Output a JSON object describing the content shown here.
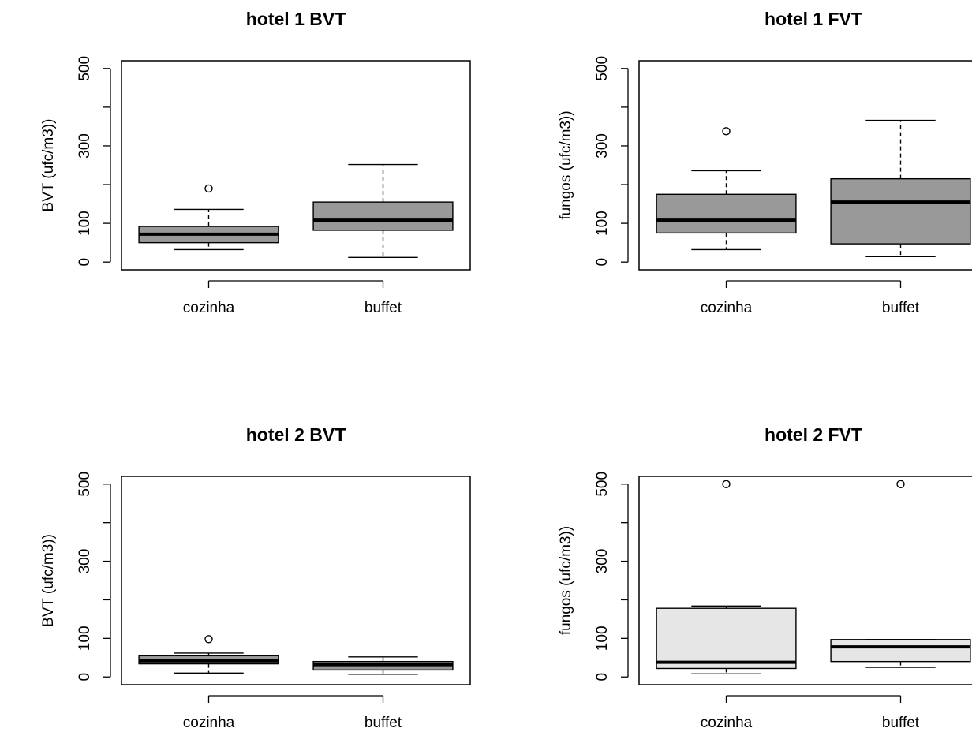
{
  "chart_data": [
    {
      "type": "box",
      "title": "hotel 1 BVT",
      "xlabel": "",
      "ylabel": "BVT (ufc/m3))",
      "ylim": [
        -20,
        520
      ],
      "yticks": [
        0,
        100,
        300,
        500
      ],
      "categories": [
        "cozinha",
        "buffet"
      ],
      "fill": "#999999",
      "boxes": [
        {
          "category": "cozinha",
          "whisker_low": 32,
          "q1": 50,
          "median": 72,
          "q3": 92,
          "whisker_high": 136,
          "outliers": [
            190
          ]
        },
        {
          "category": "buffet",
          "whisker_low": 12,
          "q1": 82,
          "median": 108,
          "q3": 155,
          "whisker_high": 252,
          "outliers": []
        }
      ]
    },
    {
      "type": "box",
      "title": "hotel 1 FVT",
      "xlabel": "",
      "ylabel": "fungos (ufc/m3))",
      "ylim": [
        -20,
        520
      ],
      "yticks": [
        0,
        100,
        300,
        500
      ],
      "categories": [
        "cozinha",
        "buffet"
      ],
      "fill": "#999999",
      "boxes": [
        {
          "category": "cozinha",
          "whisker_low": 32,
          "q1": 75,
          "median": 108,
          "q3": 175,
          "whisker_high": 236,
          "outliers": [
            338
          ]
        },
        {
          "category": "buffet",
          "whisker_low": 14,
          "q1": 47,
          "median": 155,
          "q3": 215,
          "whisker_high": 366,
          "outliers": []
        }
      ]
    },
    {
      "type": "box",
      "title": "hotel 2 BVT",
      "xlabel": "",
      "ylabel": "BVT (ufc/m3))",
      "ylim": [
        -20,
        520
      ],
      "yticks": [
        0,
        100,
        300,
        500
      ],
      "categories": [
        "cozinha",
        "buffet"
      ],
      "fill": "#999999",
      "boxes": [
        {
          "category": "cozinha",
          "whisker_low": 10,
          "q1": 34,
          "median": 42,
          "q3": 55,
          "whisker_high": 62,
          "outliers": [
            98
          ]
        },
        {
          "category": "buffet",
          "whisker_low": 7,
          "q1": 18,
          "median": 32,
          "q3": 40,
          "whisker_high": 52,
          "outliers": []
        }
      ]
    },
    {
      "type": "box",
      "title": "hotel 2 FVT",
      "xlabel": "",
      "ylabel": "fungos (ufc/m3))",
      "ylim": [
        -20,
        520
      ],
      "yticks": [
        0,
        100,
        300,
        500
      ],
      "categories": [
        "cozinha",
        "buffet"
      ],
      "fill": "#e6e6e6",
      "boxes": [
        {
          "category": "cozinha",
          "whisker_low": 8,
          "q1": 22,
          "median": 38,
          "q3": 178,
          "whisker_high": 184,
          "outliers": [
            500
          ]
        },
        {
          "category": "buffet",
          "whisker_low": 25,
          "q1": 40,
          "median": 78,
          "q3": 97,
          "whisker_high": 97,
          "outliers": [
            500
          ]
        }
      ]
    }
  ]
}
